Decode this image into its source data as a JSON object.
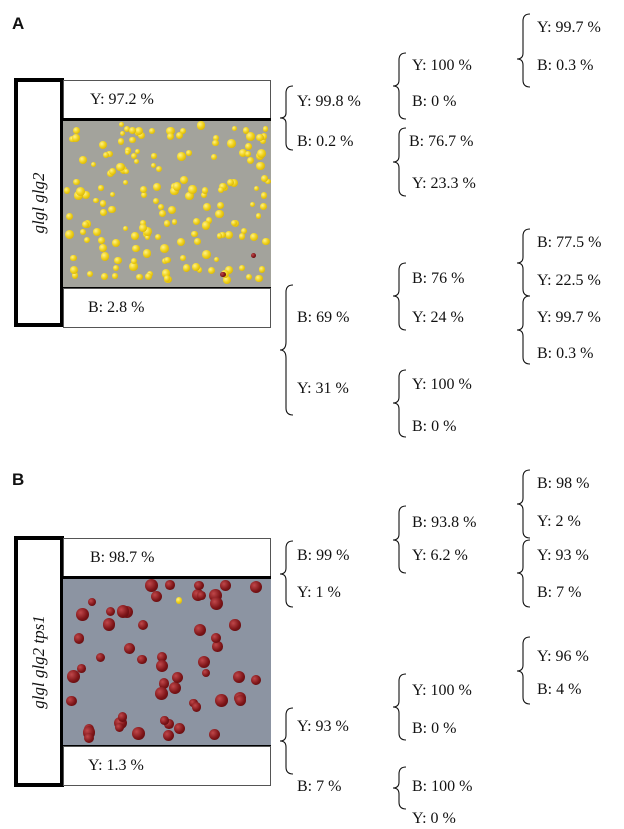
{
  "panels": [
    {
      "label": "A",
      "strain": "glgl glg2",
      "top_box": "Y: 97.2 %",
      "bottom_box": "B: 2.8 %",
      "tree": [
        "Y: 99.8 %",
        "B: 0.2 %",
        "Y: 100 %",
        "B: 0 %",
        "B: 76.7 %",
        "Y: 23.3 %",
        "Y: 99.7 %",
        "B: 0.3 %",
        "B: 69 %",
        "Y: 31 %",
        "B: 76 %",
        "Y: 24 %",
        "Y: 100 %",
        "B: 0 %",
        "B: 77.5 %",
        "Y: 22.5 %",
        "Y: 99.7 %",
        "B: 0.3 %"
      ]
    },
    {
      "label": "B",
      "strain": "glgl glg2 tps1",
      "top_box": "B: 98.7 %",
      "bottom_box": "Y: 1.3 %",
      "tree": [
        "B: 99 %",
        "Y: 1 %",
        "B: 93.8 %",
        "Y: 6.2 %",
        "B: 98 %",
        "Y: 2 %",
        "Y: 93 %",
        "B: 7 %",
        "Y: 93 %",
        "B: 7 %",
        "Y: 100 %",
        "B: 0 %",
        "Y: 96 %",
        "B: 4 %",
        "B: 100 %",
        "Y: 0 %"
      ]
    }
  ],
  "colony_colors": {
    "yellow": "#f0d21a",
    "brown": "#7e1518"
  }
}
